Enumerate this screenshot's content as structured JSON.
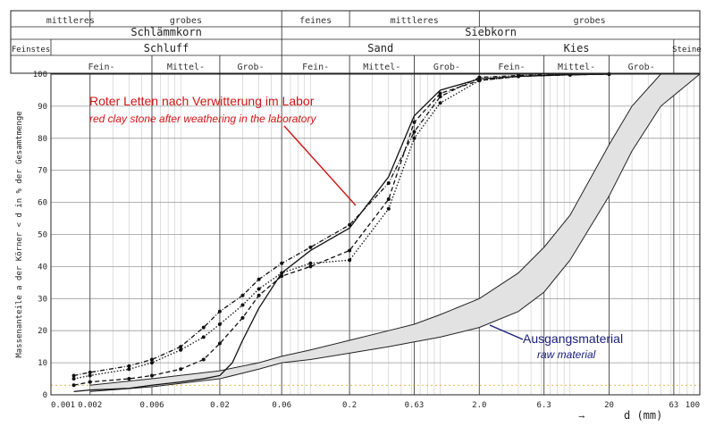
{
  "chart_data": {
    "type": "line",
    "xscale": "log",
    "xlim": [
      0.001,
      100
    ],
    "ylim": [
      0,
      100
    ],
    "grid": true,
    "ylabel": "Massenanteile a der Körner < d in % der Gesamtmenge",
    "xlabel": "d (mm)",
    "xlabel_arrow": "⟶",
    "x_tick_labels": [
      {
        "x": 0.001,
        "label": "0.001"
      },
      {
        "x": 0.002,
        "label": "0.002"
      },
      {
        "x": 0.006,
        "label": "0.006"
      },
      {
        "x": 0.02,
        "label": "0.02"
      },
      {
        "x": 0.06,
        "label": "0.06"
      },
      {
        "x": 0.2,
        "label": "0.2"
      },
      {
        "x": 0.63,
        "label": "0.63"
      },
      {
        "x": 2.0,
        "label": "2.0"
      },
      {
        "x": 6.3,
        "label": "6.3"
      },
      {
        "x": 20,
        "label": "20"
      },
      {
        "x": 63,
        "label": "63"
      },
      {
        "x": 100,
        "label": "100"
      }
    ],
    "y_tick_labels": [
      "0",
      "10",
      "20",
      "30",
      "40",
      "50",
      "60",
      "70",
      "80",
      "90",
      "100"
    ],
    "header": {
      "row1": [
        {
          "label": "mittleres",
          "x0": 0.001,
          "x1": 0.002
        },
        {
          "label": "grobes",
          "x0": 0.002,
          "x1": 0.06
        },
        {
          "label": "feines",
          "x0": 0.06,
          "x1": 0.2
        },
        {
          "label": "mittleres",
          "x0": 0.2,
          "x1": 2.0
        },
        {
          "label": "grobes",
          "x0": 2.0,
          "x1": 100
        }
      ],
      "row2": [
        {
          "label": "Schlämmkorn",
          "x0": 0.001,
          "x1": 0.06
        },
        {
          "label": "Siebkorn",
          "x0": 0.06,
          "x1": 100
        }
      ],
      "row3": [
        {
          "label": "Feinstes",
          "x0": 0.0005,
          "x1": 0.001
        },
        {
          "label": "Schluff",
          "x0": 0.001,
          "x1": 0.06
        },
        {
          "label": "Sand",
          "x0": 0.06,
          "x1": 2.0
        },
        {
          "label": "Kies",
          "x0": 2.0,
          "x1": 63
        },
        {
          "label": "Steine",
          "x0": 63,
          "x1": 100
        }
      ],
      "row4": [
        {
          "label": "Fein-",
          "x0": 0.001,
          "x1": 0.006
        },
        {
          "label": "Mittel-",
          "x0": 0.006,
          "x1": 0.02
        },
        {
          "label": "Grob-",
          "x0": 0.02,
          "x1": 0.06
        },
        {
          "label": "Fein-",
          "x0": 0.06,
          "x1": 0.2
        },
        {
          "label": "Mittel-",
          "x0": 0.2,
          "x1": 0.63
        },
        {
          "label": "Grob-",
          "x0": 0.63,
          "x1": 2.0
        },
        {
          "label": "Fein-",
          "x0": 2.0,
          "x1": 6.3
        },
        {
          "label": "Mittel-",
          "x0": 6.3,
          "x1": 20
        },
        {
          "label": "Grob-",
          "x0": 20,
          "x1": 63
        }
      ]
    },
    "annotations": {
      "red_title": "Roter Letten nach Verwitterung im Labor",
      "red_subtitle": "red clay stone after weathering in the laboratory",
      "blue_title": "Ausgangsmaterial",
      "blue_subtitle": "raw material"
    },
    "colors": {
      "red": "#d01414",
      "blue": "#1a1e7a",
      "band": "#e0e0e0"
    },
    "series": [
      {
        "style": "dash-dot",
        "x": [
          0.0015,
          0.002,
          0.004,
          0.006,
          0.01,
          0.015,
          0.02,
          0.03,
          0.04,
          0.06,
          0.1,
          0.2,
          0.4,
          0.63,
          1.0,
          2.0,
          4.0,
          10,
          20
        ],
        "y": [
          6,
          7,
          9,
          11,
          15,
          21,
          26,
          31,
          36,
          41,
          46,
          53,
          66,
          82,
          93,
          99,
          99.6,
          99.8,
          100
        ]
      },
      {
        "style": "dotted",
        "x": [
          0.0015,
          0.002,
          0.004,
          0.006,
          0.01,
          0.015,
          0.02,
          0.03,
          0.04,
          0.06,
          0.1,
          0.2,
          0.4,
          0.63,
          1.0,
          2.0,
          4.0,
          10,
          20
        ],
        "y": [
          5,
          6,
          8,
          10,
          14,
          18,
          22,
          28,
          33,
          38,
          41,
          42,
          58,
          80,
          91,
          98,
          99.3,
          99.8,
          100
        ]
      },
      {
        "style": "dashed",
        "x": [
          0.0015,
          0.002,
          0.004,
          0.006,
          0.01,
          0.015,
          0.02,
          0.03,
          0.04,
          0.06,
          0.1,
          0.2,
          0.4,
          0.63,
          1.0,
          2.0,
          4.0,
          10,
          20
        ],
        "y": [
          3,
          4,
          5,
          6,
          8,
          11,
          16,
          24,
          31,
          37,
          40,
          45,
          61,
          85,
          94,
          98,
          99.3,
          99.8,
          100
        ]
      },
      {
        "style": "solid",
        "x": [
          0.0015,
          0.002,
          0.004,
          0.006,
          0.01,
          0.015,
          0.02,
          0.025,
          0.03,
          0.04,
          0.06,
          0.1,
          0.2,
          0.4,
          0.63,
          1.0,
          2.0,
          4.0,
          10,
          20
        ],
        "y": [
          1,
          1.5,
          2,
          3,
          4,
          5,
          6,
          10,
          17,
          27,
          38,
          45,
          52,
          68,
          87,
          95,
          98.5,
          99.3,
          99.8,
          100
        ]
      }
    ],
    "raw_material_band": {
      "upper": {
        "x": [
          0.002,
          0.006,
          0.02,
          0.04,
          0.06,
          0.1,
          0.2,
          0.4,
          0.63,
          1.0,
          2.0,
          4.0,
          6.3,
          10,
          20,
          30,
          50
        ],
        "y": [
          3,
          5,
          7.5,
          10,
          12,
          14,
          17,
          20,
          22,
          25,
          30,
          38,
          46,
          56,
          78,
          90,
          100
        ]
      },
      "lower": {
        "x": [
          0.002,
          0.006,
          0.02,
          0.04,
          0.06,
          0.1,
          0.2,
          0.4,
          0.63,
          1.0,
          2.0,
          4.0,
          6.3,
          10,
          20,
          30,
          50,
          100
        ],
        "y": [
          1,
          2.5,
          5,
          8,
          10,
          11,
          13,
          15,
          16.5,
          18,
          21,
          26,
          32,
          42,
          62,
          76,
          90,
          100
        ]
      }
    }
  }
}
